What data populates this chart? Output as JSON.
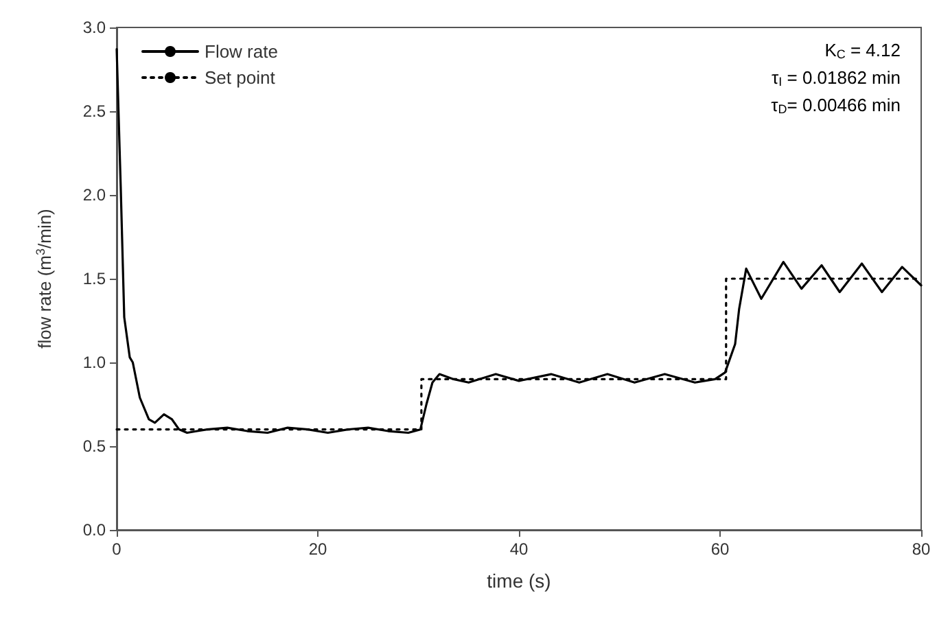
{
  "chart_data": {
    "type": "line",
    "xlabel": "time (s)",
    "ylabel": "flow rate (m$^{3}$/min)",
    "xlim": [
      0,
      80
    ],
    "ylim": [
      0,
      3
    ],
    "xticks": [
      0,
      20,
      40,
      60,
      80
    ],
    "yticks": [
      {
        "value": 0,
        "label": "0.0"
      },
      0.5,
      {
        "value": 1,
        "label": "1.0"
      },
      1.5,
      {
        "value": 2,
        "label": "2.0"
      },
      2.5,
      {
        "value": 3,
        "label": "3.0"
      }
    ],
    "grid": false,
    "legend": "top left",
    "marker": "none",
    "annotations": [
      "K$_{C}$ = 4.12",
      "τ$_{I}$ = 0.01862 min",
      "τ$_{D}$= 0.00466 min"
    ],
    "series": [
      {
        "name": "Flow rate",
        "type": "line",
        "color": "#000000",
        "line_style": "solid",
        "x": [
          0,
          0.4,
          0.75,
          1.3,
          1.6,
          2.3,
          3.2,
          3.8,
          4.7,
          5.5,
          6.2,
          7,
          8,
          9,
          11,
          13,
          15,
          17,
          19,
          21,
          23,
          25,
          27,
          29,
          30.2,
          30.8,
          31.4,
          32.1,
          33.5,
          35,
          37.7,
          40,
          43.2,
          46,
          48.8,
          51.5,
          54.5,
          57.5,
          59.5,
          60.5,
          61.5,
          61.9,
          62.6,
          64.1,
          66.3,
          68.1,
          70.1,
          71.9,
          74.1,
          76.1,
          78.1,
          80
        ],
        "values": [
          2.87,
          2.05,
          1.27,
          1.03,
          1,
          0.79,
          0.66,
          0.64,
          0.69,
          0.66,
          0.6,
          0.58,
          0.59,
          0.6,
          0.61,
          0.59,
          0.58,
          0.61,
          0.6,
          0.58,
          0.6,
          0.61,
          0.59,
          0.58,
          0.6,
          0.75,
          0.88,
          0.93,
          0.9,
          0.88,
          0.93,
          0.89,
          0.93,
          0.88,
          0.93,
          0.88,
          0.93,
          0.88,
          0.9,
          0.94,
          1.11,
          1.32,
          1.56,
          1.38,
          1.6,
          1.44,
          1.58,
          1.42,
          1.59,
          1.42,
          1.57,
          1.46
        ]
      },
      {
        "name": "Set point",
        "type": "step",
        "color": "#000000",
        "line_style": "dotted",
        "x": [
          0,
          30.3,
          60.6,
          80
        ],
        "values": [
          0.6,
          0.9,
          1.5,
          1.5
        ]
      }
    ]
  }
}
